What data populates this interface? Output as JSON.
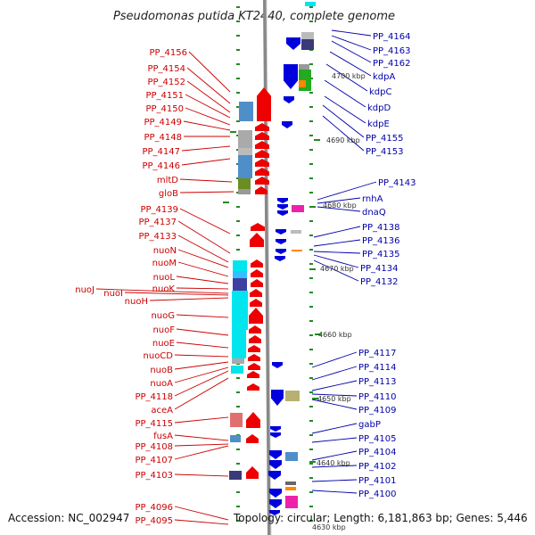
{
  "title": "Pseudomonas putida KT2440, complete genome",
  "footer": {
    "accession": "Accession: NC_002947",
    "summary": "Topology: circular; Length: 6,181,863 bp; Genes: 5,446"
  },
  "colors": {
    "left_label": "#cc0000",
    "right_label": "#0000aa",
    "forward_gene": "#ee0000",
    "reverse_gene": "#0000dd",
    "backbone": "#888888",
    "tick": "#228b22"
  },
  "kbp_markers": [
    "4700 kbp",
    "4690 kbp",
    "4680 kbp",
    "4670 kbp",
    "4660 kbp",
    "4650 kbp",
    "4640 kbp",
    "4630 kbp"
  ],
  "left_labels": [
    "PP_4156",
    "PP_4154",
    "PP_4152",
    "PP_4151",
    "PP_4150",
    "PP_4149",
    "PP_4148",
    "PP_4147",
    "PP_4146",
    "mltD",
    "gloB",
    "PP_4139",
    "PP_4137",
    "PP_4133",
    "nuoN",
    "nuoM",
    "nuoL",
    "nuoK",
    "nuoJ",
    "nuoI",
    "nuoH",
    "nuoG",
    "nuoF",
    "nuoE",
    "nuoCD",
    "nuoB",
    "nuoA",
    "PP_4118",
    "aceA",
    "PP_4115",
    "fusA",
    "PP_4108",
    "PP_4107",
    "PP_4103",
    "PP_4096",
    "PP_4095"
  ],
  "right_labels": [
    "PP_4164",
    "PP_4163",
    "PP_4162",
    "kdpA",
    "kdpC",
    "kdpD",
    "kdpE",
    "PP_4155",
    "PP_4153",
    "PP_4143",
    "rnhA",
    "dnaQ",
    "PP_4138",
    "PP_4136",
    "PP_4135",
    "PP_4134",
    "PP_4132",
    "PP_4117",
    "PP_4114",
    "PP_4113",
    "PP_4110",
    "PP_4109",
    "gabP",
    "PP_4105",
    "PP_4104",
    "PP_4102",
    "PP_4101",
    "PP_4100"
  ]
}
